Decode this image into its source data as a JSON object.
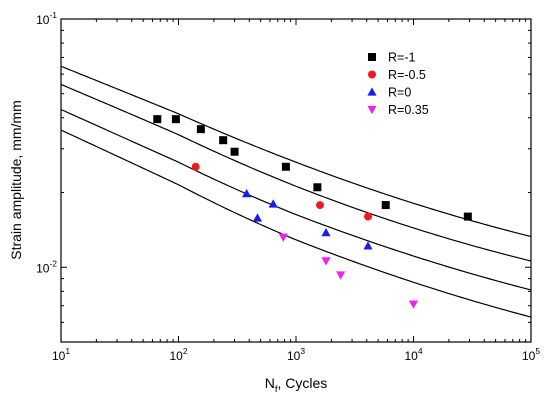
{
  "chart_data": {
    "type": "scatter",
    "x_scale": "log",
    "y_scale": "log",
    "xlim": [
      10,
      100000
    ],
    "ylim": [
      0.005,
      0.1
    ],
    "xlabel": {
      "base": "N",
      "sub": "f",
      "rest": ", Cycles"
    },
    "ylabel": "Strain amplitude, mm/mm",
    "x_ticks": [
      {
        "value": 10,
        "base": "10",
        "exp": "1"
      },
      {
        "value": 100,
        "base": "10",
        "exp": "2"
      },
      {
        "value": 1000,
        "base": "10",
        "exp": "3"
      },
      {
        "value": 10000,
        "base": "10",
        "exp": "4"
      },
      {
        "value": 100000,
        "base": "10",
        "exp": "5"
      }
    ],
    "y_ticks": [
      {
        "value": 0.01,
        "base": "10",
        "exp": "-2"
      },
      {
        "value": 0.1,
        "base": "10",
        "exp": "-1"
      }
    ],
    "legend_position": "top-right",
    "series": [
      {
        "name": "R=-1",
        "marker": "square",
        "color": "#000000",
        "points": [
          [
            66,
            0.0395
          ],
          [
            95,
            0.0395
          ],
          [
            155,
            0.036
          ],
          [
            240,
            0.0325
          ],
          [
            300,
            0.0292
          ],
          [
            820,
            0.0254
          ],
          [
            1520,
            0.021
          ],
          [
            5800,
            0.0178
          ],
          [
            29000,
            0.016
          ]
        ]
      },
      {
        "name": "R=-0.5",
        "marker": "circle",
        "color": "#ee1c1c",
        "points": [
          [
            140,
            0.0254
          ],
          [
            1600,
            0.0178
          ],
          [
            4100,
            0.016
          ]
        ]
      },
      {
        "name": "R=0",
        "marker": "triangle-up",
        "color": "#1a1aee",
        "points": [
          [
            380,
            0.0198
          ],
          [
            470,
            0.0158
          ],
          [
            640,
            0.018
          ],
          [
            1800,
            0.0138
          ],
          [
            4100,
            0.0122
          ]
        ]
      },
      {
        "name": "R=0.35",
        "marker": "triangle-down",
        "color": "#ee22ee",
        "points": [
          [
            780,
            0.0132
          ],
          [
            1800,
            0.0106
          ],
          [
            2400,
            0.0093
          ],
          [
            10000,
            0.0071
          ]
        ]
      }
    ],
    "fit_curves": [
      {
        "x": [
          10,
          100,
          1000,
          10000,
          100000
        ],
        "y": [
          0.0645,
          0.0415,
          0.0265,
          0.0181,
          0.0133
        ]
      },
      {
        "x": [
          10,
          100,
          1000,
          10000,
          100000
        ],
        "y": [
          0.0545,
          0.0342,
          0.0212,
          0.0144,
          0.0106
        ]
      },
      {
        "x": [
          10,
          100,
          1000,
          10000,
          100000
        ],
        "y": [
          0.0432,
          0.0265,
          0.0163,
          0.0111,
          0.0081
        ]
      },
      {
        "x": [
          10,
          100,
          1000,
          10000,
          100000
        ],
        "y": [
          0.0357,
          0.0215,
          0.0129,
          0.0087,
          0.0063
        ]
      }
    ]
  }
}
